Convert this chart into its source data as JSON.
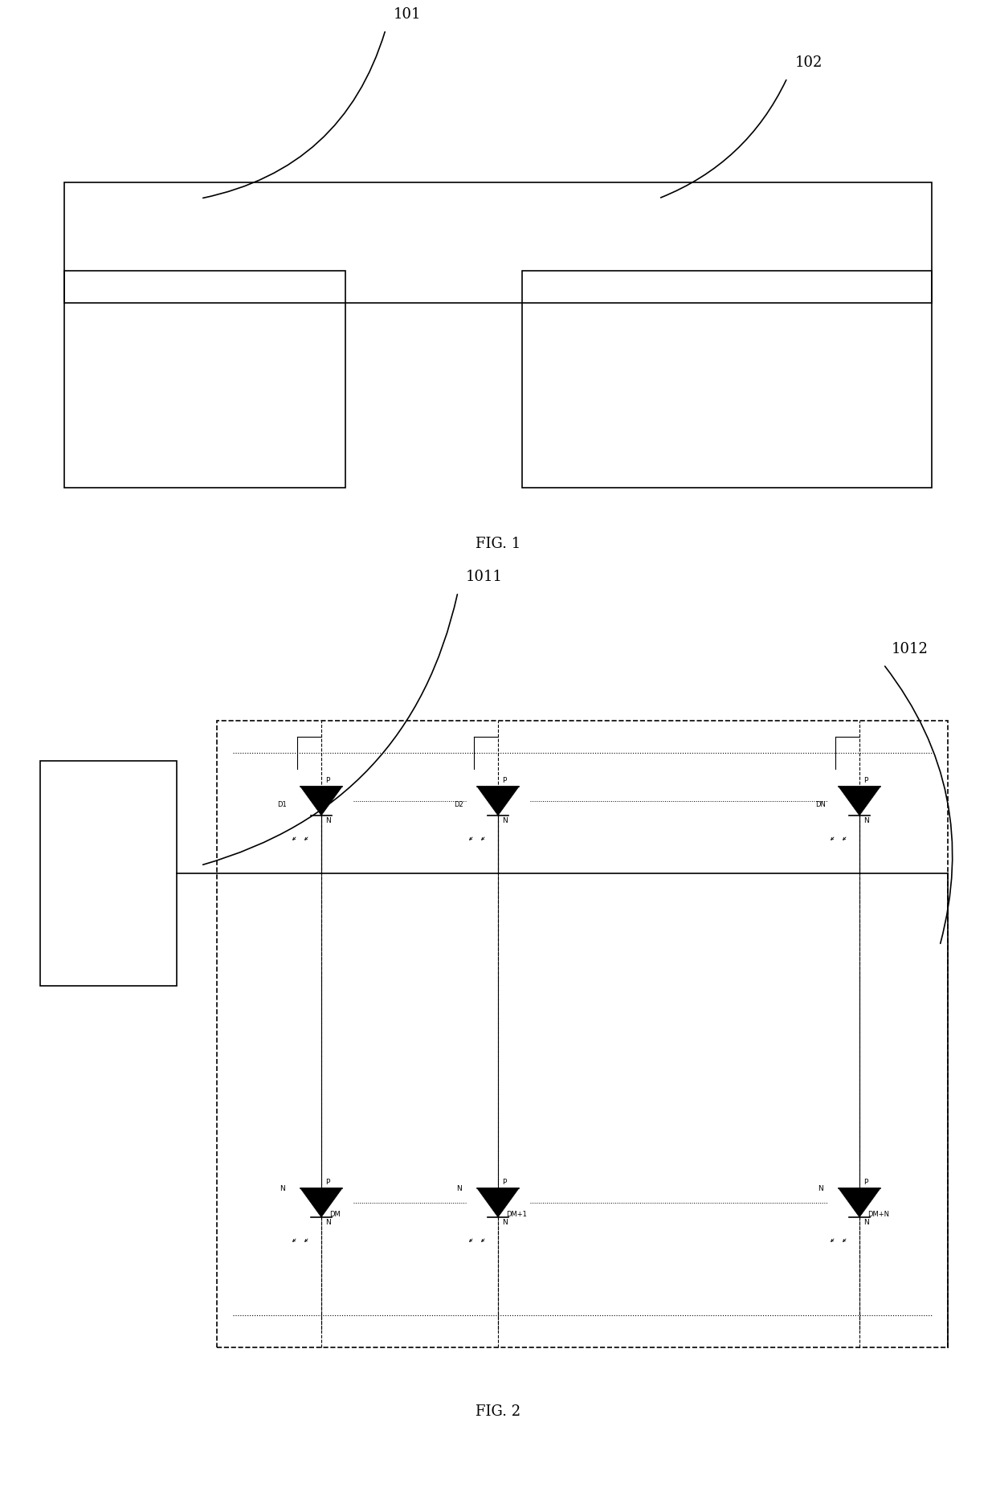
{
  "fig_width": 12.4,
  "fig_height": 18.57,
  "bg_color": "#ffffff",
  "line_color": "#000000",
  "fig1_label": "FIG. 1",
  "fig2_label": "FIG. 2",
  "label_101": "101",
  "label_102": "102",
  "label_1011": "1011",
  "label_1012": "1012",
  "diode_labels_top": [
    "D1",
    "D2",
    "DN"
  ],
  "diode_labels_bot": [
    "DM",
    "DM+1",
    "DM+N"
  ]
}
